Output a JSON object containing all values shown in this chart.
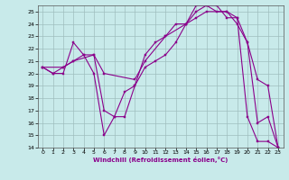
{
  "xlabel": "Windchill (Refroidissement éolien,°C)",
  "bg_color": "#c8eaea",
  "line_color": "#8b008b",
  "grid_color": "#b0c8c8",
  "xlim": [
    -0.5,
    23.5
  ],
  "ylim": [
    14,
    25.5
  ],
  "yticks": [
    14,
    15,
    16,
    17,
    18,
    19,
    20,
    21,
    22,
    23,
    24,
    25
  ],
  "xticks": [
    0,
    1,
    2,
    3,
    4,
    5,
    6,
    7,
    8,
    9,
    10,
    11,
    12,
    13,
    14,
    15,
    16,
    17,
    18,
    19,
    20,
    21,
    22,
    23
  ],
  "line1_x": [
    0,
    1,
    2,
    3,
    4,
    5,
    6,
    7,
    8,
    9,
    10,
    11,
    12,
    13,
    14,
    15,
    16,
    17,
    18,
    19,
    20,
    21,
    22,
    23
  ],
  "line1_y": [
    20.5,
    20.0,
    20.0,
    22.5,
    21.5,
    21.5,
    17.0,
    16.5,
    16.5,
    19.0,
    21.5,
    22.5,
    23.0,
    24.0,
    24.0,
    25.5,
    25.5,
    25.0,
    25.0,
    24.0,
    22.5,
    16.0,
    16.5,
    14.0
  ],
  "line2_x": [
    0,
    1,
    2,
    3,
    4,
    5,
    6,
    7,
    8,
    9,
    10,
    11,
    12,
    13,
    14,
    15,
    16,
    17,
    18,
    19,
    20,
    21,
    22,
    23
  ],
  "line2_y": [
    20.5,
    20.0,
    20.5,
    21.0,
    21.5,
    20.0,
    15.0,
    16.5,
    18.5,
    19.0,
    20.5,
    21.0,
    21.5,
    22.5,
    24.0,
    25.0,
    25.5,
    25.5,
    24.5,
    24.5,
    16.5,
    14.5,
    14.5,
    14.0
  ],
  "line3_x": [
    0,
    2,
    3,
    5,
    6,
    9,
    10,
    12,
    14,
    15,
    16,
    18,
    19,
    20,
    21,
    22,
    23
  ],
  "line3_y": [
    20.5,
    20.5,
    21.0,
    21.5,
    20.0,
    19.5,
    21.0,
    23.0,
    24.0,
    24.5,
    25.0,
    25.0,
    24.5,
    22.5,
    19.5,
    19.0,
    14.0
  ]
}
